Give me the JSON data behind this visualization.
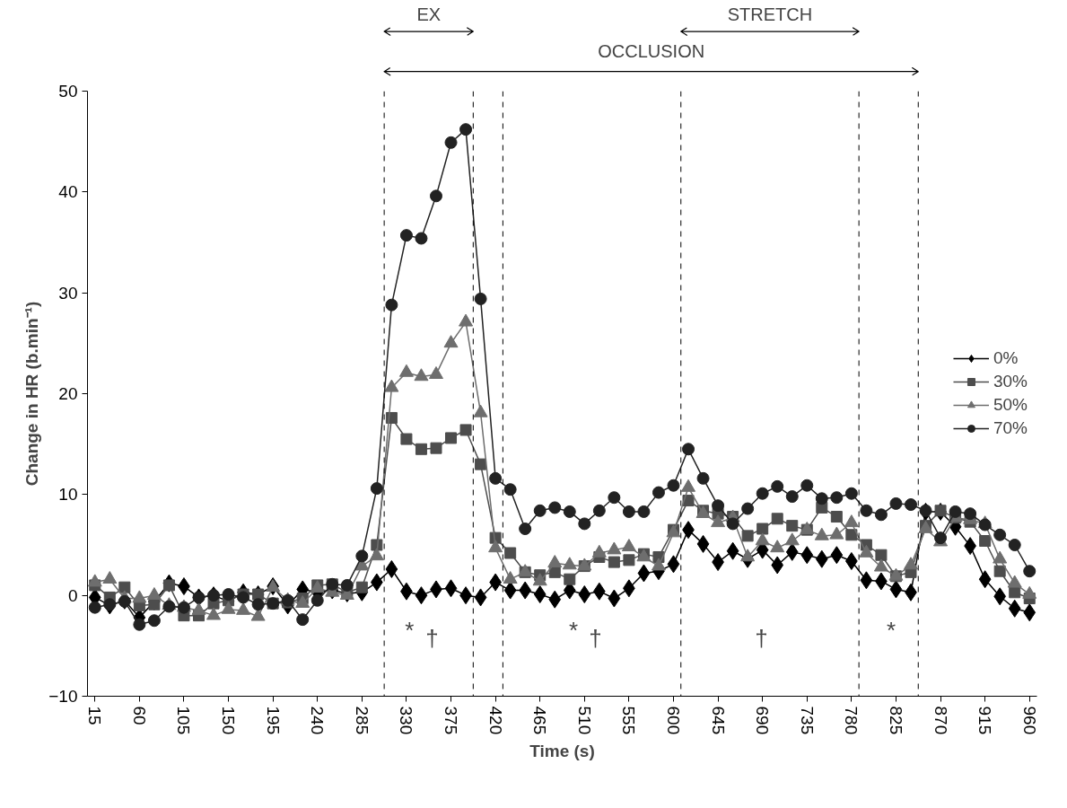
{
  "chart_data": {
    "type": "line",
    "xlabel": "Time (s)",
    "ylabel": "Change in HR (b.min⁻¹)",
    "x": [
      15,
      30,
      45,
      60,
      75,
      90,
      105,
      120,
      135,
      150,
      165,
      180,
      195,
      210,
      225,
      240,
      255,
      270,
      285,
      300,
      315,
      330,
      345,
      360,
      375,
      390,
      405,
      420,
      435,
      450,
      465,
      480,
      495,
      510,
      525,
      540,
      555,
      570,
      585,
      600,
      615,
      630,
      645,
      660,
      675,
      690,
      705,
      720,
      735,
      750,
      765,
      780,
      795,
      810,
      825,
      840,
      855,
      870,
      885,
      900,
      915,
      930,
      945,
      960
    ],
    "series": [
      {
        "name": "0%",
        "color": "#000000",
        "marker": "diamond",
        "values": [
          -0.2,
          -1.0,
          -0.5,
          -2.2,
          -0.6,
          1.2,
          0.9,
          -0.2,
          0.0,
          -0.6,
          0.3,
          0.1,
          0.9,
          -1.0,
          0.6,
          0.3,
          0.5,
          0.2,
          0.3,
          1.3,
          2.6,
          0.4,
          0.0,
          0.6,
          0.7,
          0.0,
          -0.2,
          1.3,
          0.5,
          0.5,
          0.1,
          -0.4,
          0.5,
          0.1,
          0.4,
          -0.3,
          0.7,
          2.2,
          2.4,
          3.1,
          6.5,
          5.1,
          3.3,
          4.4,
          3.6,
          4.5,
          3.0,
          4.3,
          4.0,
          3.6,
          4.0,
          3.4,
          1.5,
          1.4,
          0.6,
          0.3,
          8.3,
          8.3,
          6.8,
          4.9,
          1.6,
          -0.1,
          -1.3,
          -1.7
        ]
      },
      {
        "name": "30%",
        "color": "#4d4d4d",
        "marker": "square",
        "values": [
          1.0,
          -0.2,
          0.8,
          -1.0,
          -0.9,
          1.0,
          -2.0,
          -2.0,
          -0.8,
          -0.5,
          0.1,
          0.1,
          -0.8,
          -0.7,
          -0.3,
          1.0,
          1.1,
          0.3,
          0.8,
          5.0,
          17.6,
          15.5,
          14.5,
          14.6,
          15.6,
          16.4,
          13.0,
          5.7,
          4.2,
          2.3,
          2.0,
          2.3,
          1.6,
          2.9,
          3.8,
          3.3,
          3.5,
          4.1,
          3.8,
          6.5,
          9.4,
          8.4,
          8.1,
          7.8,
          5.9,
          6.6,
          7.6,
          6.9,
          6.5,
          8.7,
          7.8,
          6.0,
          5.0,
          4.0,
          1.9,
          2.3,
          6.9,
          8.4,
          7.7,
          7.3,
          5.4,
          2.4,
          0.3,
          -0.3
        ]
      },
      {
        "name": "50%",
        "color": "#6e6e6e",
        "marker": "triangle",
        "values": [
          1.3,
          1.6,
          -0.3,
          -0.3,
          0.0,
          -1.0,
          -1.2,
          -1.5,
          -2.0,
          -1.4,
          -1.5,
          -2.1,
          0.8,
          -0.5,
          -0.8,
          0.7,
          0.3,
          0.0,
          2.9,
          3.9,
          20.6,
          22.1,
          21.7,
          21.9,
          25.0,
          27.1,
          18.1,
          4.7,
          1.6,
          2.3,
          1.4,
          3.2,
          3.0,
          2.9,
          4.2,
          4.5,
          4.8,
          3.8,
          2.9,
          6.2,
          10.7,
          8.1,
          7.2,
          7.7,
          3.8,
          5.4,
          4.7,
          5.4,
          6.5,
          5.9,
          6.0,
          7.2,
          4.2,
          2.8,
          1.9,
          3.0,
          6.6,
          5.3,
          7.7,
          7.5,
          7.1,
          3.6,
          1.2,
          0.1
        ]
      },
      {
        "name": "70%",
        "color": "#222222",
        "marker": "circle",
        "values": [
          -1.2,
          -0.9,
          -0.6,
          -2.9,
          -2.5,
          -1.1,
          -1.2,
          -0.2,
          0.0,
          0.1,
          -0.2,
          -0.9,
          -0.8,
          -0.5,
          -2.4,
          -0.5,
          1.1,
          1.0,
          3.9,
          10.6,
          28.8,
          35.7,
          35.4,
          39.6,
          44.9,
          46.2,
          29.4,
          11.6,
          10.5,
          6.6,
          8.4,
          8.7,
          8.3,
          7.1,
          8.4,
          9.7,
          8.3,
          8.3,
          10.2,
          10.9,
          14.5,
          11.6,
          8.9,
          7.1,
          8.6,
          10.1,
          10.8,
          9.8,
          10.9,
          9.6,
          9.7,
          10.1,
          8.4,
          8.0,
          9.1,
          9.0,
          8.4,
          5.7,
          8.3,
          8.1,
          7.0,
          6.0,
          5.0,
          2.4
        ]
      }
    ],
    "xlim": [
      7.5,
      967.5
    ],
    "ylim": [
      -10,
      50
    ],
    "xticks": [
      15,
      60,
      105,
      150,
      195,
      240,
      285,
      330,
      375,
      420,
      465,
      510,
      555,
      600,
      645,
      690,
      735,
      780,
      825,
      870,
      915,
      960
    ],
    "yticks": [
      -10,
      0,
      10,
      20,
      30,
      40,
      50
    ],
    "grid": false,
    "legend": "right",
    "line_style": "solid",
    "ref_lines": [
      {
        "axis": "x",
        "value": 307.5,
        "line_style": "dashed",
        "color": "#000000"
      },
      {
        "axis": "x",
        "value": 397.5,
        "line_style": "dashed",
        "color": "#000000"
      },
      {
        "axis": "x",
        "value": 427.5,
        "line_style": "dashed",
        "color": "#000000"
      },
      {
        "axis": "x",
        "value": 607.5,
        "line_style": "dashed",
        "color": "#000000"
      },
      {
        "axis": "x",
        "value": 787.5,
        "line_style": "dashed",
        "color": "#000000"
      },
      {
        "axis": "x",
        "value": 847.5,
        "line_style": "dashed",
        "color": "#000000"
      }
    ],
    "annotations": [
      "EX",
      "OCCLUSION",
      "STRETCH",
      "*",
      "†",
      "*",
      "†",
      "†",
      "*"
    ]
  }
}
